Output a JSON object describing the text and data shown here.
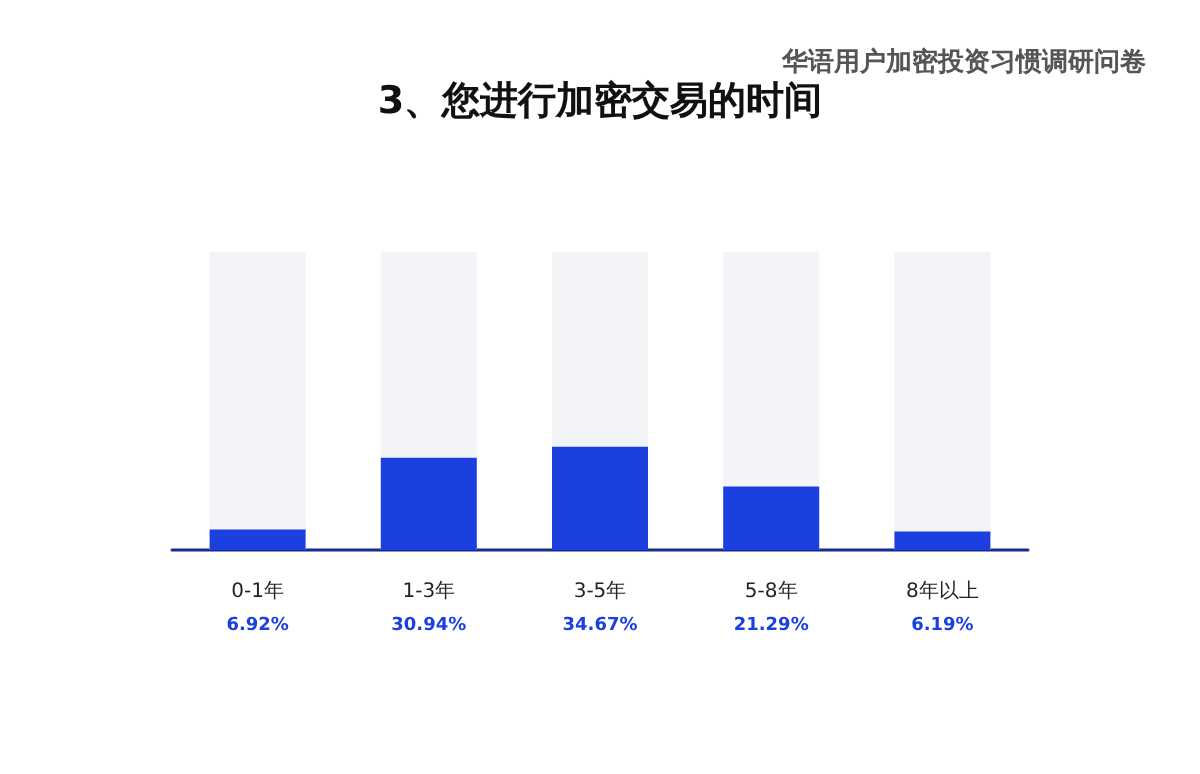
{
  "chart_data": {
    "type": "bar",
    "title": "3、您进行加密交易的时间",
    "subtitle": "华语用户加密投资习惯调研问卷",
    "categories": [
      "0-1年",
      "1-3年",
      "3-5年",
      "5-8年",
      "8年以上"
    ],
    "values": [
      6.92,
      30.94,
      34.67,
      21.29,
      6.19
    ],
    "value_labels": [
      "6.92%",
      "30.94%",
      "34.67%",
      "21.29%",
      "6.19%"
    ],
    "color": "#1c3fe0",
    "ylim": [
      0,
      100
    ],
    "tick_labels": "x"
  }
}
